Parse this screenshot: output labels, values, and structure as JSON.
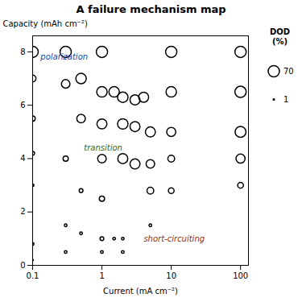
{
  "chart_data": {
    "type": "scatter",
    "title": "A failure mechanism map",
    "xlabel": "Current (mA cm⁻²)",
    "ylabel": "Capacity (mAh cm⁻²)",
    "x": [
      0.1,
      0.3,
      1.0,
      10.0,
      100.0,
      0.1,
      0.3,
      0.5,
      1.0,
      1.5,
      2.0,
      3.0,
      4.0,
      10.0,
      100.0,
      0.1,
      0.5,
      1.0,
      2.0,
      3.0,
      5.0,
      10.0,
      100.0,
      0.1,
      0.3,
      1.0,
      2.0,
      3.0,
      5.0,
      10.0,
      100.0,
      0.1,
      0.5,
      1.0,
      5.0,
      10.0,
      100.0,
      0.3,
      0.5,
      1.0,
      1.5,
      2.0,
      5.0,
      0.1,
      0.3,
      1.0,
      2.0,
      0.1
    ],
    "values": [
      8.0,
      8.0,
      8.0,
      8.0,
      8.0,
      7.0,
      6.8,
      7.0,
      6.5,
      6.5,
      6.3,
      6.2,
      6.3,
      6.5,
      6.5,
      5.5,
      5.5,
      5.3,
      5.3,
      5.2,
      5.0,
      5.0,
      5.0,
      4.2,
      4.0,
      4.0,
      4.0,
      3.8,
      3.8,
      4.0,
      4.0,
      3.0,
      2.8,
      2.5,
      2.8,
      2.8,
      3.0,
      1.5,
      1.2,
      1.0,
      1.0,
      1.0,
      1.5,
      0.8,
      0.5,
      0.5,
      0.5,
      0.2
    ],
    "sizes": [
      70,
      70,
      70,
      70,
      70,
      25,
      40,
      60,
      60,
      60,
      60,
      55,
      55,
      60,
      70,
      15,
      40,
      55,
      60,
      55,
      55,
      45,
      65,
      8,
      15,
      40,
      55,
      55,
      40,
      25,
      45,
      4,
      8,
      15,
      25,
      18,
      18,
      4,
      4,
      8,
      4,
      4,
      4,
      4,
      4,
      4,
      4,
      1
    ],
    "size_label": "DOD\n(%)",
    "size_ticks": [
      70,
      1
    ],
    "log": "x",
    "xlim": [
      0.1,
      130
    ],
    "ylim": [
      0,
      8.6
    ],
    "xticks": [
      0.1,
      1,
      10,
      100
    ],
    "yticks": [
      0,
      2,
      4,
      6,
      8
    ],
    "grid": false,
    "annotations": [
      {
        "text": "polarization",
        "x": 0.13,
        "y": 7.8,
        "color": "#2244aa"
      },
      {
        "text": "transition",
        "x": 0.55,
        "y": 4.4,
        "color": "#336622"
      },
      {
        "text": "short-circuiting",
        "x": 4.0,
        "y": 1.0,
        "color": "#883322"
      }
    ]
  }
}
